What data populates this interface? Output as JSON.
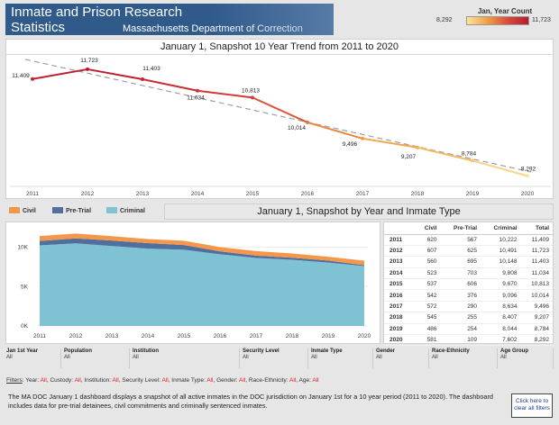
{
  "header": {
    "title_line1": "Inmate and Prison Research",
    "title_line2": "Statistics",
    "department": "Massachusetts Department of Correction"
  },
  "color_legend": {
    "title": "Jan, Year Count",
    "min_label": "8,292",
    "max_label": "11,723",
    "min_color": "#fbe49a",
    "max_color": "#b71a2f"
  },
  "trend": {
    "title": "January 1, Snapshot 10 Year Trend from  2011 to 2020"
  },
  "chart_data": [
    {
      "type": "line",
      "title": "January 1, Snapshot 10 Year Trend from  2011 to 2020",
      "x": [
        "2011",
        "2012",
        "2013",
        "2014",
        "2015",
        "2016",
        "2017",
        "2018",
        "2019",
        "2020"
      ],
      "values": [
        11409,
        11723,
        11403,
        11034,
        10813,
        10014,
        9496,
        9207,
        8784,
        8292
      ],
      "labels": [
        "11,409",
        "11,723",
        "11,403",
        "11,034",
        "10,813",
        "10,014",
        "9,496",
        "9,207",
        "8,784",
        "8,292"
      ],
      "trendline": true,
      "ylim": [
        8000,
        12000
      ],
      "grid": false
    },
    {
      "type": "area",
      "title": "January  1, Snapshot by Year and Inmate Type",
      "categories": [
        "2011",
        "2012",
        "2013",
        "2014",
        "2015",
        "2016",
        "2017",
        "2018",
        "2019",
        "2020"
      ],
      "series": [
        {
          "name": "Criminal",
          "color": "#7ec2d4",
          "values": [
            10222,
            10491,
            10148,
            9808,
            9670,
            9096,
            8634,
            8407,
            8044,
            7602
          ]
        },
        {
          "name": "Pre-Trial",
          "color": "#4f6f9c",
          "values": [
            567,
            625,
            695,
            703,
            606,
            376,
            290,
            255,
            254,
            109
          ]
        },
        {
          "name": "Civil",
          "color": "#f5974a",
          "values": [
            620,
            607,
            560,
            523,
            537,
            542,
            572,
            545,
            486,
            581
          ]
        }
      ],
      "yticks": [
        "0K",
        "5K",
        "10K"
      ],
      "ylim": [
        0,
        12000
      ]
    }
  ],
  "type_section": {
    "title": "January  1, Snapshot by Year and Inmate Type",
    "legend": [
      {
        "label": "Civil",
        "color": "#f5974a"
      },
      {
        "label": "Pre-Trial",
        "color": "#4f6f9c"
      },
      {
        "label": "Criminal",
        "color": "#7ec2d4"
      }
    ]
  },
  "table": {
    "headers": [
      "",
      "Civil",
      "Pre-Trial",
      "Criminal",
      "Total"
    ],
    "rows": [
      [
        "2011",
        "620",
        "567",
        "10,222",
        "11,409"
      ],
      [
        "2012",
        "607",
        "625",
        "10,491",
        "11,723"
      ],
      [
        "2013",
        "560",
        "695",
        "10,148",
        "11,403"
      ],
      [
        "2014",
        "523",
        "703",
        "9,808",
        "11,034"
      ],
      [
        "2015",
        "537",
        "606",
        "9,670",
        "10,813"
      ],
      [
        "2016",
        "542",
        "376",
        "9,096",
        "10,014"
      ],
      [
        "2017",
        "572",
        "290",
        "8,634",
        "9,496"
      ],
      [
        "2018",
        "545",
        "255",
        "8,407",
        "9,207"
      ],
      [
        "2019",
        "486",
        "254",
        "8,044",
        "8,784"
      ],
      [
        "2020",
        "581",
        "109",
        "7,602",
        "8,292"
      ]
    ]
  },
  "filters": [
    {
      "label": "Jan 1st Year",
      "value": "All"
    },
    {
      "label": "Population",
      "value": "All"
    },
    {
      "label": "Institution",
      "value": "All"
    },
    {
      "label": "Security Level",
      "value": "All"
    },
    {
      "label": "Inmate Type",
      "value": "All"
    },
    {
      "label": "Gender",
      "value": "All"
    },
    {
      "label": "Race-Ethnicity",
      "value": "All"
    },
    {
      "label": "Age Group",
      "value": "All"
    }
  ],
  "filter_summary": {
    "label": "Filters",
    "items": [
      {
        "k": "Year:",
        "v": "All"
      },
      {
        "k": "Custody:",
        "v": "All"
      },
      {
        "k": "Institution:",
        "v": "All"
      },
      {
        "k": "Security Level:",
        "v": "All"
      },
      {
        "k": "Inmate Type:",
        "v": "All"
      },
      {
        "k": "Gender:",
        "v": "All"
      },
      {
        "k": "Race-Ethnicity:",
        "v": "All"
      },
      {
        "k": "Age:",
        "v": "All"
      }
    ]
  },
  "description": "The MA DOC January 1 dashboard displays a snapshot of all active inmates in the DOC jurisdiction on January 1st for a 10 year period (2011 to 2020). The dashboard includes data for pre-trial detainees, civil commitments and criminally sentenced inmates.",
  "clear_button": {
    "line1": "Click here to",
    "line2": "clear all filters"
  }
}
